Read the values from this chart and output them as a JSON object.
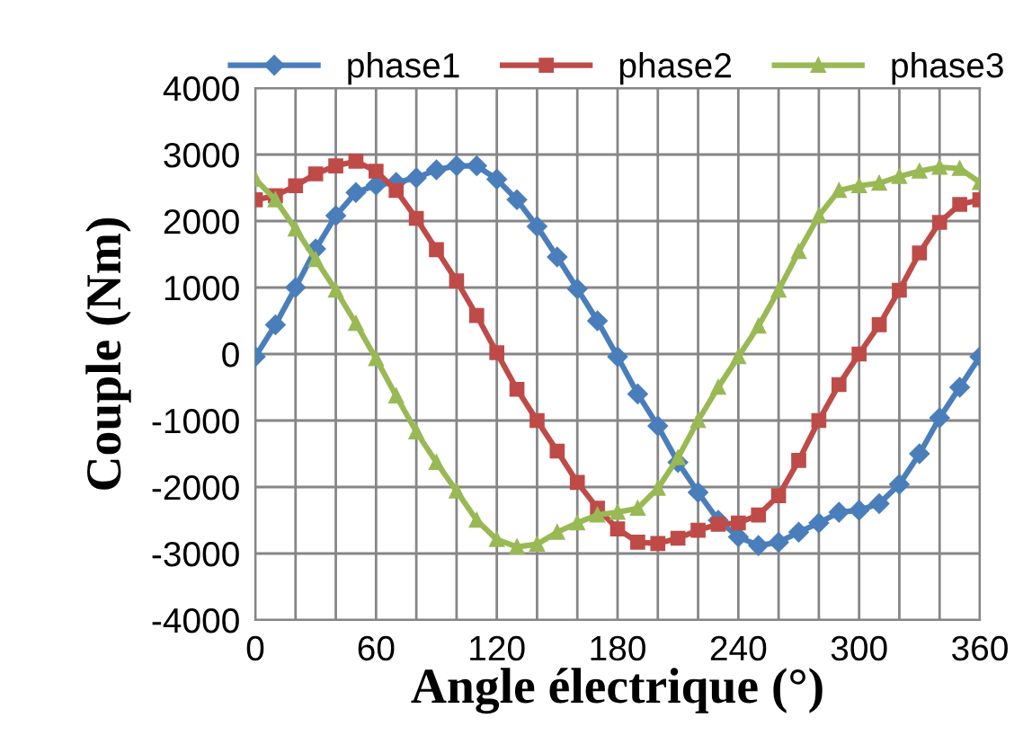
{
  "chart_data": {
    "type": "line",
    "xlabel": "Angle électrique (°)",
    "ylabel": "Couple (Nm)",
    "x": [
      0,
      10,
      20,
      30,
      40,
      50,
      60,
      70,
      80,
      90,
      100,
      110,
      120,
      130,
      140,
      150,
      160,
      170,
      180,
      190,
      200,
      210,
      220,
      230,
      240,
      250,
      260,
      270,
      280,
      290,
      300,
      310,
      320,
      330,
      340,
      350,
      360
    ],
    "series": [
      {
        "name": "phase1",
        "color": "#4a7ebb",
        "marker": "diamond",
        "values": [
          -40,
          440,
          1000,
          1580,
          2080,
          2430,
          2540,
          2580,
          2650,
          2770,
          2830,
          2830,
          2630,
          2320,
          1920,
          1460,
          980,
          500,
          -40,
          -600,
          -1080,
          -1630,
          -2080,
          -2500,
          -2750,
          -2880,
          -2830,
          -2680,
          -2540,
          -2380,
          -2350,
          -2250,
          -1960,
          -1500,
          -960,
          -500,
          -40
        ]
      },
      {
        "name": "phase2",
        "color": "#be4b48",
        "marker": "square",
        "values": [
          2320,
          2380,
          2530,
          2710,
          2830,
          2900,
          2750,
          2460,
          2040,
          1570,
          1100,
          580,
          20,
          -530,
          -1000,
          -1460,
          -1930,
          -2320,
          -2630,
          -2830,
          -2850,
          -2770,
          -2650,
          -2560,
          -2540,
          -2420,
          -2130,
          -1600,
          -1000,
          -460,
          0,
          440,
          960,
          1520,
          1980,
          2250,
          2320
        ]
      },
      {
        "name": "phase3",
        "color": "#98b954",
        "marker": "triangle",
        "values": [
          2630,
          2320,
          1880,
          1420,
          960,
          460,
          -70,
          -630,
          -1170,
          -1630,
          -2060,
          -2500,
          -2790,
          -2900,
          -2860,
          -2680,
          -2540,
          -2420,
          -2380,
          -2320,
          -2020,
          -1560,
          -1000,
          -500,
          -40,
          420,
          960,
          1540,
          2080,
          2460,
          2530,
          2570,
          2670,
          2750,
          2810,
          2790,
          2580
        ]
      }
    ],
    "xlim": [
      0,
      360
    ],
    "xticks": [
      0,
      {
        "value": 20,
        "label": null
      },
      {
        "value": 40,
        "label": null
      },
      60,
      {
        "value": 80,
        "label": null
      },
      {
        "value": 100,
        "label": null
      },
      120,
      {
        "value": 140,
        "label": null
      },
      {
        "value": 160,
        "label": null
      },
      180,
      {
        "value": 200,
        "label": null
      },
      {
        "value": 220,
        "label": null
      },
      240,
      {
        "value": 260,
        "label": null
      },
      {
        "value": 280,
        "label": null
      },
      300,
      {
        "value": 320,
        "label": null
      },
      {
        "value": 340,
        "label": null
      },
      360
    ],
    "ylim": [
      -4000,
      4000
    ],
    "yticks": [
      -4000,
      -3000,
      -2000,
      -1000,
      0,
      1000,
      2000,
      3000,
      4000
    ],
    "grid": true,
    "legend": "top",
    "line_style": "solid"
  }
}
